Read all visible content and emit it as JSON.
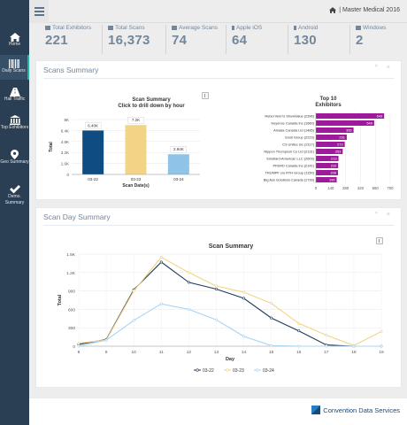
{
  "nav": {
    "items": [
      {
        "label": "Home",
        "icon": "home-icon"
      },
      {
        "label": "Daily Scans",
        "icon": "barcode-icon",
        "active": true
      },
      {
        "label": "Hall Traffic",
        "icon": "road-icon"
      },
      {
        "label": "Top Exhibitors",
        "icon": "building-icon"
      },
      {
        "label": "Geo Summary",
        "icon": "map-marker-icon"
      },
      {
        "label": "Demo. Summary",
        "icon": "check-icon"
      }
    ]
  },
  "header": {
    "brand": "| Master Medical 2016"
  },
  "stats": [
    {
      "label": "Total Exhibitors",
      "value": "221"
    },
    {
      "label": "Total Scans",
      "value": "16,373"
    },
    {
      "label": "Average Scans",
      "value": "74"
    },
    {
      "label": "Apple iOS",
      "value": "64"
    },
    {
      "label": "Android",
      "value": "130"
    },
    {
      "label": "Windows",
      "value": "2"
    }
  ],
  "panels": {
    "scans_summary": {
      "title": "Scans Summary",
      "tools": "^ ×"
    },
    "scan_day_summary": {
      "title": "Scan Day Summary",
      "tools": "^ ×"
    }
  },
  "footer": {
    "logo_text": "Convention Data Services"
  },
  "chart_data": [
    {
      "type": "bar",
      "title": "Scan Summary",
      "subtitle": "Click to drill down by hour",
      "xlabel": "Scan Date(s)",
      "ylabel": "Total",
      "categories": [
        "03-22",
        "03-23",
        "03-24"
      ],
      "values": [
        6400,
        7200,
        2940
      ],
      "data_labels": [
        "6.40K",
        "7.2K",
        "2.94K"
      ],
      "colors": [
        "#0f4c81",
        "#f3d486",
        "#8fc3e8"
      ],
      "ylim": [
        0,
        8000
      ],
      "yticks": [
        "0",
        "1.6K",
        "3.2K",
        "4.8K",
        "6.4K",
        "8K"
      ],
      "grid": true
    },
    {
      "type": "bar",
      "orientation": "horizontal",
      "title": "Top 10",
      "subtitle": "Exhibitors",
      "categories": [
        "Rebel Venn's ShowValue (2396)",
        "Keyence Canada Inc (1660)",
        "Amada Canada Ltd (1485)",
        "Ensil Group (2223)",
        "CS Unitec Inc (2117)",
        "Nippon Thompson Co Ltd (2131)",
        "Smutlard-American LLC (2603)",
        "PFERD Canada Inc (2141)",
        "TRUMPF c/o RTH Group (1150)",
        "Big Ass Solutions Canada (1739)"
      ],
      "values": [
        643,
        549,
        355,
        291,
        272,
        253,
        213,
        210,
        208,
        196
      ],
      "color": "#a0189b",
      "xlim": [
        0,
        700
      ],
      "xticks": [
        "0",
        "140",
        "280",
        "420",
        "560",
        "700"
      ]
    },
    {
      "type": "line",
      "title": "Scan Summary",
      "xlabel": "Day",
      "ylabel": "Total",
      "x": [
        8,
        9,
        10,
        11,
        12,
        13,
        14,
        15,
        16,
        17,
        18,
        19
      ],
      "ylim": [
        0,
        1500
      ],
      "yticks": [
        "0",
        "300",
        "600",
        "900",
        "1.2K",
        "1.5K"
      ],
      "series": [
        {
          "name": "03-22",
          "color": "#1f3b5a",
          "values": [
            30,
            110,
            920,
            1370,
            1040,
            930,
            780,
            460,
            250,
            20,
            0,
            0
          ]
        },
        {
          "name": "03-23",
          "color": "#f3d486",
          "values": [
            50,
            100,
            900,
            1450,
            1200,
            980,
            880,
            700,
            370,
            180,
            10,
            240
          ]
        },
        {
          "name": "03-24",
          "color": "#a9d4f2",
          "values": [
            0,
            100,
            420,
            690,
            600,
            430,
            160,
            10,
            0,
            0,
            0,
            0
          ]
        }
      ],
      "grid": true
    }
  ]
}
